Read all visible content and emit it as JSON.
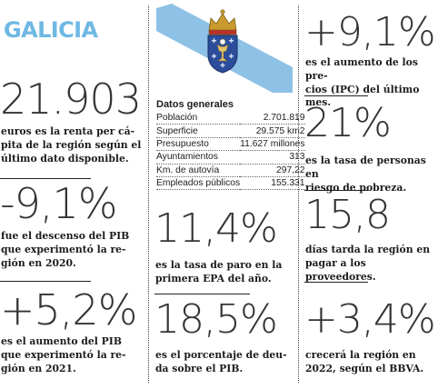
{
  "region": {
    "title": "GALICIA",
    "title_color": "#6fb8e4"
  },
  "column1": {
    "stat1": {
      "value": "21.903",
      "caption": [
        "euros es la renta per cá-",
        "pita de la región según el",
        "último dato disponible."
      ]
    },
    "stat2": {
      "value": "-9,1%",
      "caption": [
        "fue el descenso del PIB",
        "que experimentó la re-",
        "gión en 2020."
      ]
    },
    "stat3": {
      "value": "+5,2%",
      "caption": [
        "es el aumento del PIB",
        "que experimentó la re-",
        "gión en 2021."
      ]
    }
  },
  "column2": {
    "flag": {
      "description": "coat-of-arms",
      "stripe_color": "#8dc1e6",
      "crown_color": "#c99a2e",
      "shield_color": "#2b4d9c"
    },
    "table": {
      "title": "Datos generales",
      "rows": [
        {
          "label": "Población",
          "value": "2.701.819"
        },
        {
          "label": "Superficie",
          "value": "29.575 km2"
        },
        {
          "label": "Presupuesto",
          "value": "11.627 millones"
        },
        {
          "label": "Ayuntamientos",
          "value": "313"
        },
        {
          "label": "Km. de autovía",
          "value": "297,22"
        },
        {
          "label": "Empleados públicos",
          "value": "155.331"
        }
      ]
    },
    "stat1": {
      "value": "11,4%",
      "caption": [
        "es la tasa de paro en la",
        "primera EPA del año."
      ]
    },
    "stat2": {
      "value": "18,5%",
      "caption": [
        "es el porcentaje de deu-",
        "da sobre el PIB."
      ]
    }
  },
  "column3": {
    "stat1": {
      "value": "+9,1%",
      "caption": [
        "es el aumento de los pre-",
        "cios (IPC) del último mes."
      ]
    },
    "stat2": {
      "value": "21%",
      "caption": [
        "es la tasa de personas en",
        "riesgo de pobreza."
      ]
    },
    "stat3": {
      "value": "15,8",
      "caption": [
        "días tarda la región en",
        "pagar a los proveedores."
      ]
    },
    "stat4": {
      "value": "+3,4%",
      "caption": [
        "crecerá la región en",
        "2022, según el BBVA."
      ]
    }
  }
}
